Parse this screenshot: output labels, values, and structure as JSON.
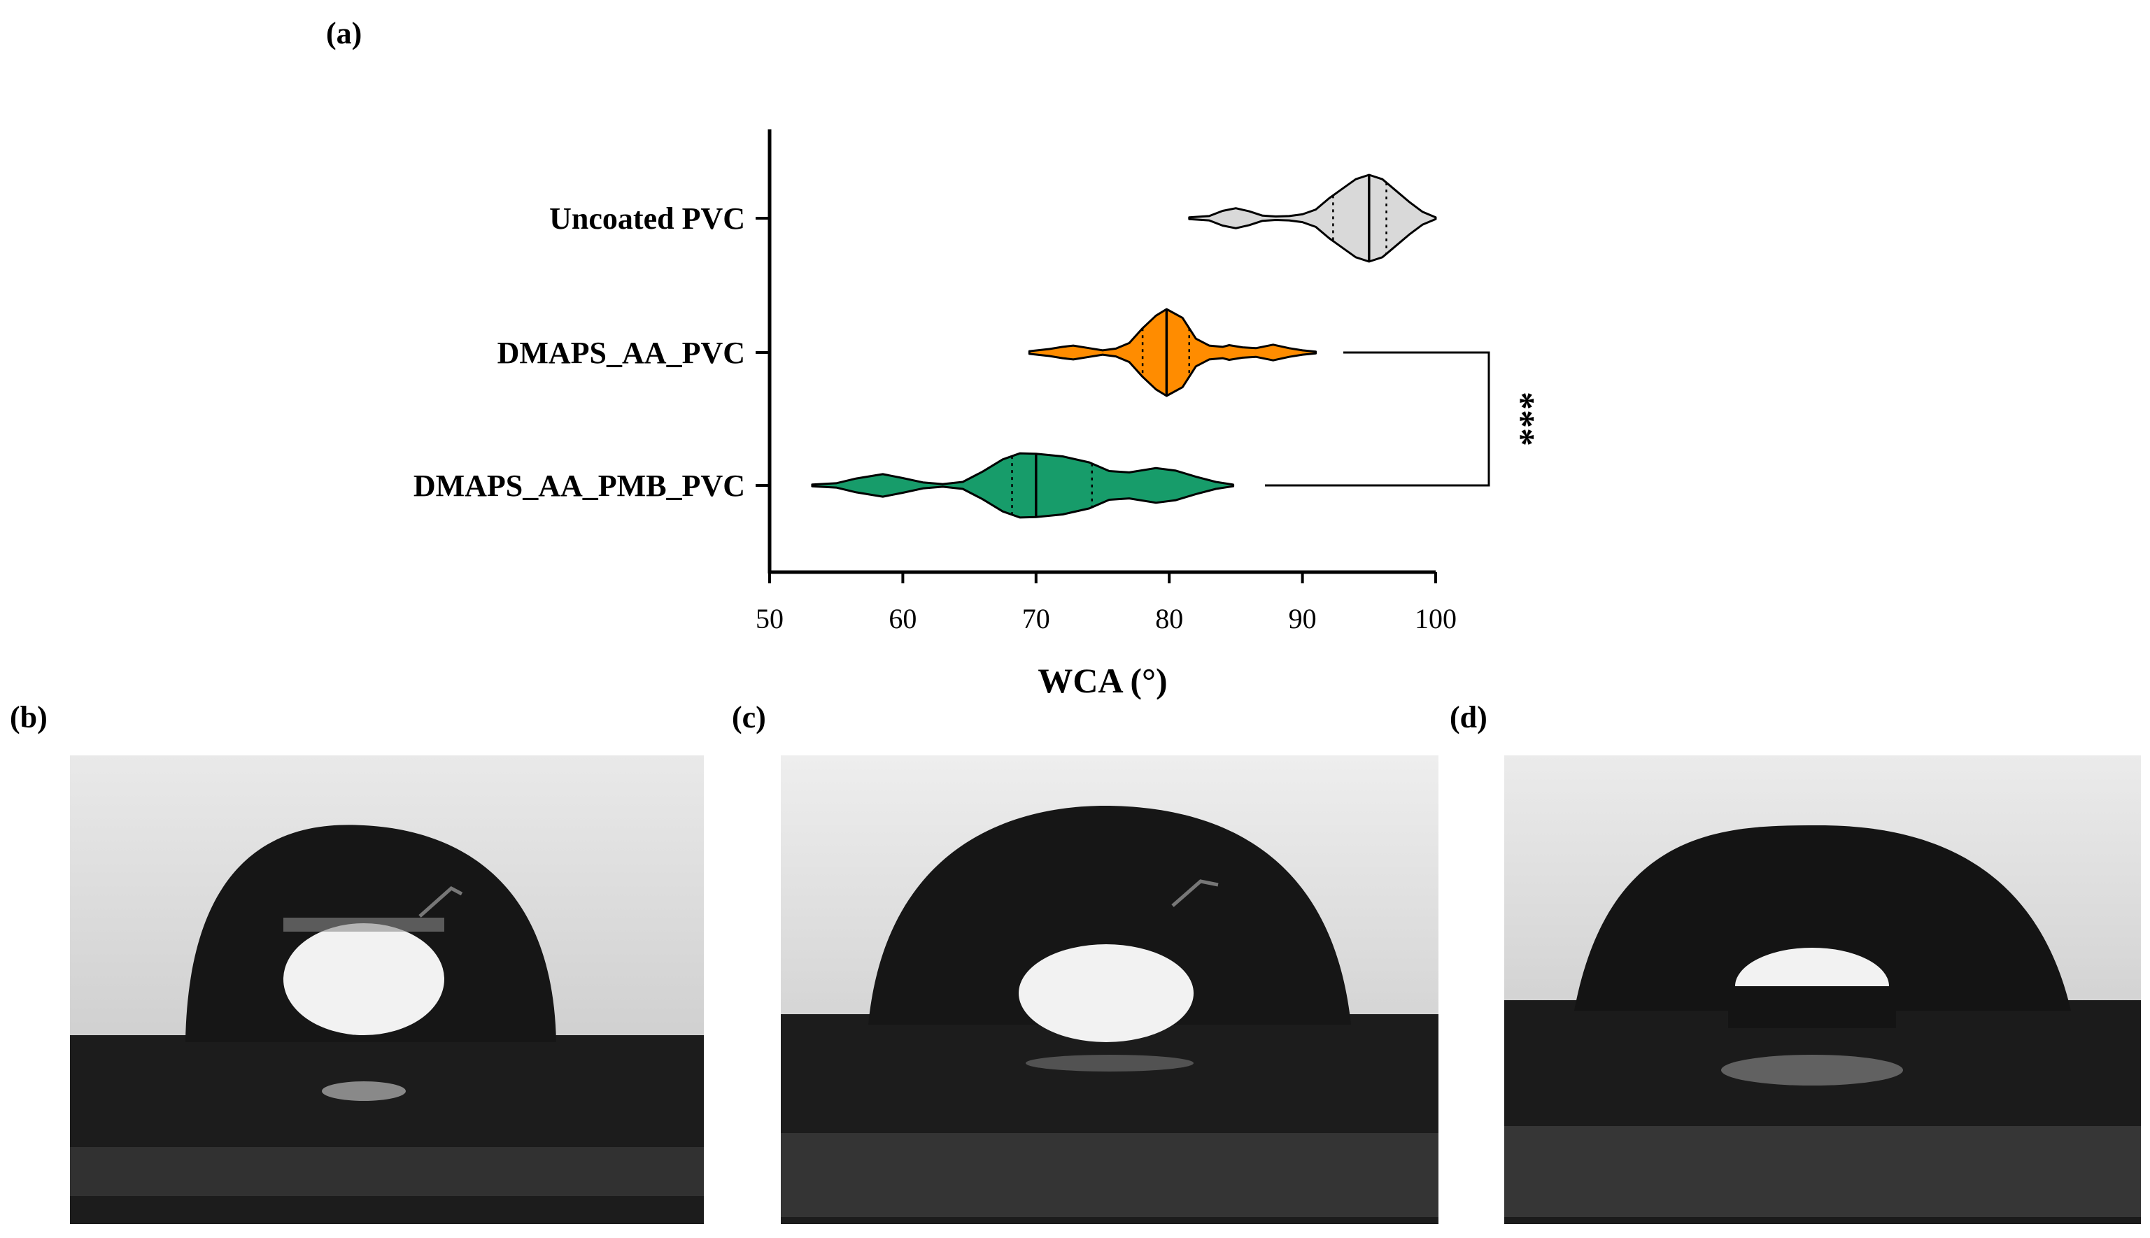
{
  "panels": {
    "a": "(a)",
    "b": "(b)",
    "c": "(c)",
    "d": "(d)"
  },
  "chart_data": {
    "type": "violin",
    "orientation": "horizontal",
    "xlabel": "WCA (°)",
    "ylabel": "",
    "xlim": [
      50,
      100
    ],
    "xticks": [
      50,
      60,
      70,
      80,
      90,
      100
    ],
    "grid": false,
    "legend": "none",
    "categories": [
      "Uncoated PVC",
      "DMAPS_AA_PVC",
      "DMAPS_AA_PMB_PVC"
    ],
    "series": [
      {
        "category": "Uncoated PVC",
        "color": "#d9d9d9",
        "min": 81.5,
        "q1": 92.3,
        "median": 95.0,
        "q3": 96.3,
        "max": 100.0,
        "density": [
          [
            81.5,
            0.02
          ],
          [
            83,
            0.05
          ],
          [
            84,
            0.17
          ],
          [
            85,
            0.23
          ],
          [
            86,
            0.16
          ],
          [
            87,
            0.06
          ],
          [
            88,
            0.04
          ],
          [
            89,
            0.05
          ],
          [
            90,
            0.09
          ],
          [
            91,
            0.2
          ],
          [
            92,
            0.46
          ],
          [
            93,
            0.68
          ],
          [
            94,
            0.9
          ],
          [
            95,
            1.0
          ],
          [
            96,
            0.9
          ],
          [
            97,
            0.64
          ],
          [
            98,
            0.38
          ],
          [
            99,
            0.15
          ],
          [
            100,
            0.02
          ]
        ]
      },
      {
        "category": "DMAPS_AA_PVC",
        "color": "#ff8c00",
        "min": 69.5,
        "q1": 78.0,
        "median": 79.8,
        "q3": 81.5,
        "max": 91.0,
        "density": [
          [
            69.5,
            0.03
          ],
          [
            71,
            0.08
          ],
          [
            72,
            0.13
          ],
          [
            72.8,
            0.16
          ],
          [
            74,
            0.1
          ],
          [
            75,
            0.05
          ],
          [
            76,
            0.09
          ],
          [
            77,
            0.22
          ],
          [
            78,
            0.56
          ],
          [
            79,
            0.85
          ],
          [
            79.8,
            1.0
          ],
          [
            81,
            0.8
          ],
          [
            82,
            0.32
          ],
          [
            83,
            0.16
          ],
          [
            84,
            0.13
          ],
          [
            84.5,
            0.17
          ],
          [
            85.5,
            0.12
          ],
          [
            86.5,
            0.1
          ],
          [
            87.8,
            0.18
          ],
          [
            89,
            0.1
          ],
          [
            90,
            0.05
          ],
          [
            91,
            0.02
          ]
        ]
      },
      {
        "category": "DMAPS_AA_PMB_PVC",
        "color": "#179c6a",
        "min": 53.2,
        "q1": 68.2,
        "median": 70.0,
        "q3": 74.2,
        "max": 84.8,
        "density": [
          [
            53.2,
            0.02
          ],
          [
            55,
            0.05
          ],
          [
            56.5,
            0.16
          ],
          [
            58.5,
            0.26
          ],
          [
            60,
            0.17
          ],
          [
            61.5,
            0.07
          ],
          [
            63,
            0.03
          ],
          [
            64.5,
            0.08
          ],
          [
            66,
            0.32
          ],
          [
            67.5,
            0.6
          ],
          [
            68.8,
            0.74
          ],
          [
            70,
            0.73
          ],
          [
            72,
            0.67
          ],
          [
            74,
            0.53
          ],
          [
            75.5,
            0.33
          ],
          [
            77,
            0.3
          ],
          [
            79,
            0.4
          ],
          [
            80.5,
            0.34
          ],
          [
            82,
            0.2
          ],
          [
            83.5,
            0.08
          ],
          [
            84.8,
            0.02
          ]
        ]
      }
    ],
    "annotations": [
      {
        "type": "significance-bracket",
        "between": [
          "DMAPS_AA_PVC",
          "DMAPS_AA_PMB_PVC"
        ],
        "text": "***"
      }
    ]
  },
  "photos": [
    {
      "id": "b",
      "description_key": "droplet-uncoated"
    },
    {
      "id": "c",
      "description_key": "droplet-dmaps-aa"
    },
    {
      "id": "d",
      "description_key": "droplet-dmaps-aa-pmb"
    }
  ]
}
